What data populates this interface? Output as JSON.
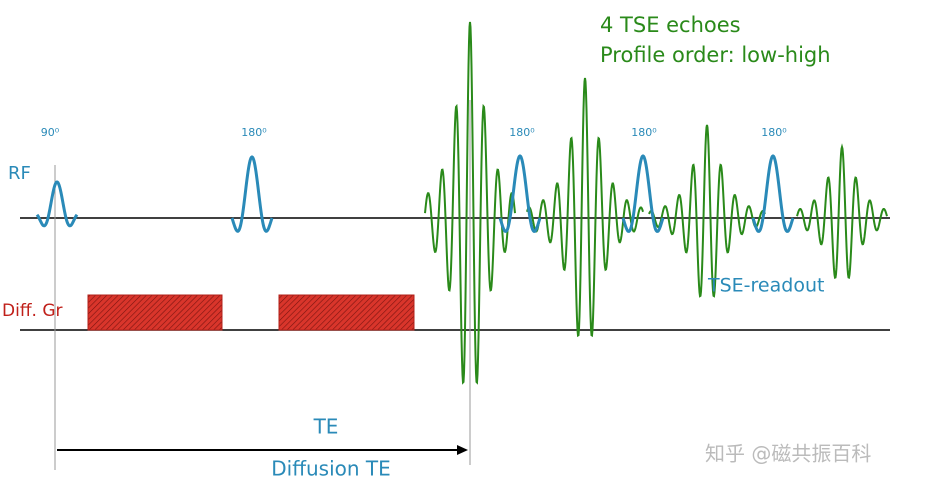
{
  "title": {
    "line1": "4 TSE echoes",
    "line2": "Profile order: low-high"
  },
  "rf": {
    "label": "RF",
    "pulses": [
      "90⁰",
      "180⁰",
      "180⁰",
      "180⁰",
      "180⁰"
    ]
  },
  "gradient": {
    "label": "Diff. Gr"
  },
  "readout": {
    "label": "TSE-readout"
  },
  "timing": {
    "te": "TE",
    "diffusion_te": "Diffusion TE"
  },
  "watermark": "知乎 @磁共振百科"
}
